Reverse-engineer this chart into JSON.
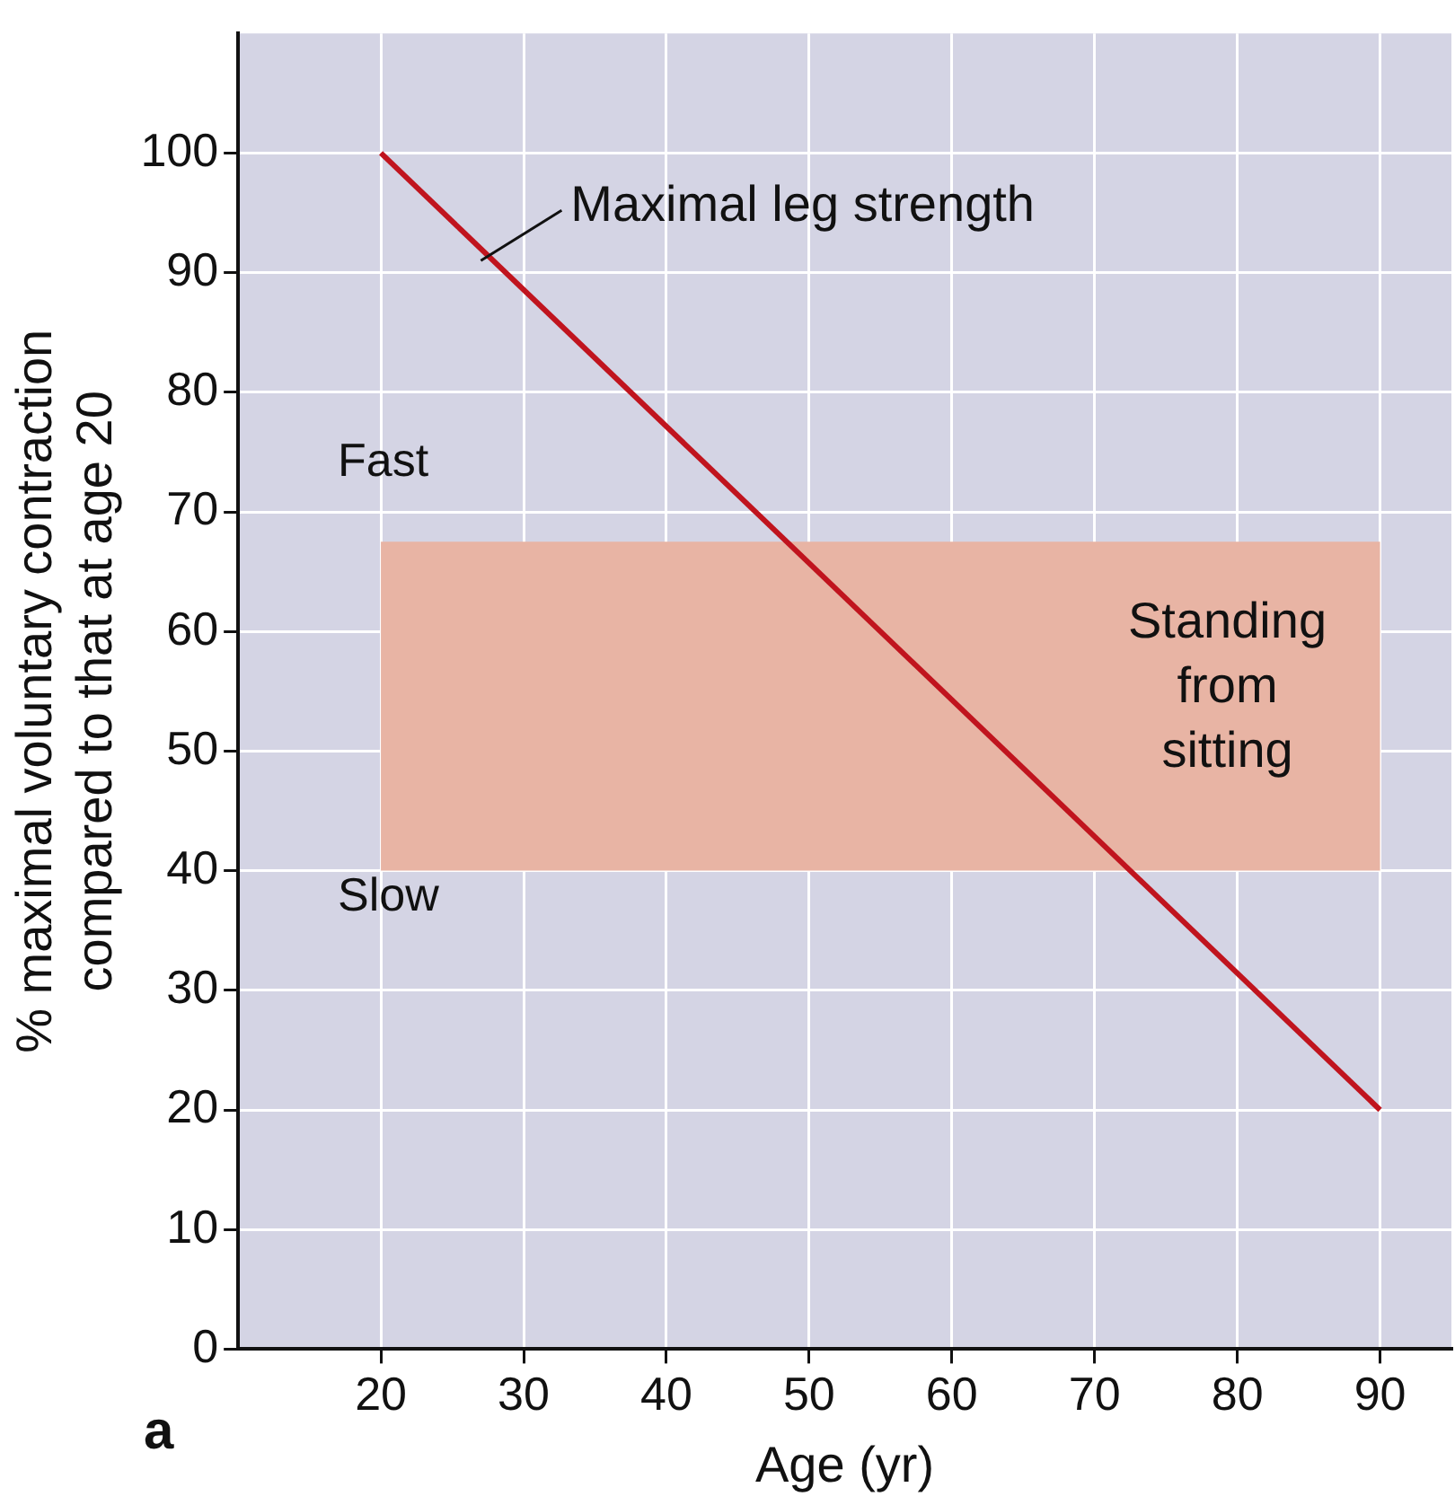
{
  "chart_data": {
    "type": "line",
    "xlabel": "Age (yr)",
    "ylabel": "% maximal voluntary contraction\ncompared to that at age 20",
    "series": [
      {
        "x": [
          20,
          90
        ],
        "values": [
          100,
          20
        ],
        "color": "#c0141e"
      }
    ],
    "xlim": [
      10,
      95
    ],
    "xticks": [
      20,
      30,
      40,
      50,
      60,
      70,
      80,
      90
    ],
    "ylim": [
      0,
      110
    ],
    "yticks": [
      0,
      10,
      20,
      30,
      40,
      50,
      60,
      70,
      80,
      90,
      100
    ],
    "grid": true,
    "marker": "none",
    "line_style": "solid",
    "legend": false,
    "bands": [
      {
        "axis": "y",
        "from": 40,
        "to": 67.5,
        "label": "Standing\nfrom\nsitting",
        "color": "#e8b4a4"
      }
    ],
    "annotations": [
      {
        "text": "Maximal leg strength",
        "x": 27,
        "y": 91
      },
      "Fast",
      "Slow",
      "a"
    ]
  }
}
